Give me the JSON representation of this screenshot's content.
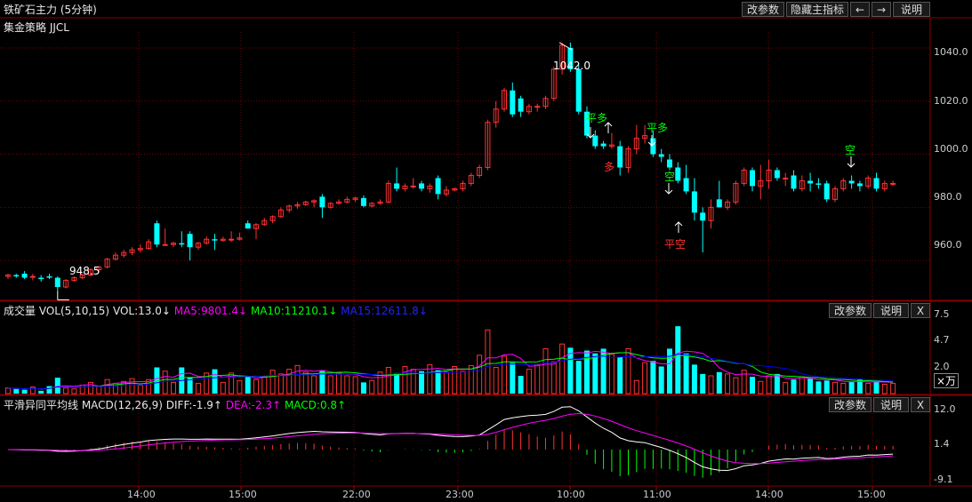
{
  "header": {
    "title": "铁矿石主力 (5分钟)",
    "strategy": "集金策略 JJCL",
    "buttons": [
      "改参数",
      "隐藏主指标",
      "←",
      "→",
      "说明"
    ]
  },
  "colors": {
    "up": "#ff3232",
    "down": "#00ffff",
    "grid": "#7a0000",
    "ma5": "#ff00ff",
    "ma10": "#00ff00",
    "ma15": "#0000ff",
    "signal_green": "#00ff00",
    "signal_red": "#ff3232"
  },
  "price_panel": {
    "y_ticks": [
      "1040.0",
      "1020.0",
      "1000.0",
      "980.0",
      "960.0"
    ],
    "high_label": "1042.0",
    "low_label": "948.5",
    "signals": [
      {
        "text": "平多",
        "color": "green"
      },
      {
        "text": "多",
        "color": "red"
      },
      {
        "text": "平多",
        "color": "green"
      },
      {
        "text": "空",
        "color": "green"
      },
      {
        "text": "平空",
        "color": "red"
      },
      {
        "text": "空",
        "color": "green"
      }
    ]
  },
  "volume_panel": {
    "title": "成交量 VOL(5,10,15)",
    "vol": "VOL:13.0↓",
    "ma5": "MA5:9801.4↓",
    "ma10": "MA10:11210.1↓",
    "ma15": "MA15:12611.8↓",
    "y_ticks": [
      "7.5",
      "4.7",
      "2.0"
    ],
    "unit": "×万",
    "buttons": [
      "改参数",
      "说明",
      "X"
    ]
  },
  "macd_panel": {
    "title": "平滑异同平均线 MACD(12,26,9)",
    "diff": "DIFF:-1.9↑",
    "dea": "DEA:-2.3↑",
    "macd": "MACD:0.8↑",
    "y_ticks": [
      "12.0",
      "1.4",
      "-9.1"
    ],
    "buttons": [
      "改参数",
      "说明",
      "X"
    ]
  },
  "x_ticks": [
    "14:00",
    "15:00",
    "22:00",
    "23:00",
    "10:00",
    "11:00",
    "14:00",
    "15:00"
  ],
  "chart_data": {
    "type": "candlestick",
    "price_range": [
      945,
      1046
    ],
    "candles": [
      [
        954,
        955,
        953,
        954.5
      ],
      [
        954.5,
        955,
        953.5,
        954
      ],
      [
        955,
        956,
        953,
        953.5
      ],
      [
        954,
        955,
        952.5,
        954
      ],
      [
        953.5,
        954.5,
        952,
        953
      ],
      [
        954,
        955,
        953,
        953.5
      ],
      [
        953.5,
        954,
        948.5,
        950
      ],
      [
        950,
        953,
        949.5,
        952.5
      ],
      [
        952.5,
        954,
        952,
        953.5
      ],
      [
        953.5,
        955,
        953,
        954.5
      ],
      [
        954.5,
        957,
        954,
        956.5
      ],
      [
        956.5,
        958,
        955.5,
        957.5
      ],
      [
        957.5,
        961,
        957,
        960.5
      ],
      [
        960.5,
        963,
        960,
        962
      ],
      [
        962,
        964,
        961,
        963
      ],
      [
        963,
        965,
        962,
        964
      ],
      [
        964,
        966,
        963,
        964.5
      ],
      [
        964.5,
        968,
        964,
        967
      ],
      [
        974,
        975,
        965,
        966
      ],
      [
        966,
        972,
        965.5,
        966
      ],
      [
        966,
        967,
        965,
        966.5
      ],
      [
        966.5,
        971,
        965,
        966
      ],
      [
        970,
        971,
        960,
        965
      ],
      [
        965,
        967,
        964,
        966.5
      ],
      [
        966.5,
        969,
        966,
        968
      ],
      [
        968,
        970,
        964,
        967.5
      ],
      [
        967.5,
        969,
        967,
        968
      ],
      [
        968,
        971,
        967,
        968
      ],
      [
        968,
        970.5,
        967.5,
        968.5
      ],
      [
        974,
        975,
        972,
        972
      ],
      [
        972,
        974,
        968,
        973.5
      ],
      [
        973.5,
        976,
        973,
        975
      ],
      [
        975,
        977,
        974,
        976.5
      ],
      [
        976.5,
        980,
        976,
        979
      ],
      [
        979,
        981,
        978,
        980.5
      ],
      [
        980.5,
        982,
        979.5,
        981
      ],
      [
        981,
        982.5,
        980.5,
        982
      ],
      [
        982,
        983,
        980,
        982.5
      ],
      [
        984,
        985,
        976,
        980
      ],
      [
        980,
        982,
        979.5,
        981.5
      ],
      [
        981.5,
        983,
        981,
        982
      ],
      [
        982,
        984,
        981.5,
        983
      ],
      [
        983,
        984,
        982,
        983.5
      ],
      [
        983.5,
        984.5,
        980,
        980.5
      ],
      [
        980.5,
        982,
        980,
        981.5
      ],
      [
        981.5,
        983,
        981,
        982
      ],
      [
        982,
        990,
        981.5,
        989
      ],
      [
        989,
        995,
        986,
        987
      ],
      [
        987,
        989,
        986,
        988
      ],
      [
        988,
        991,
        987,
        988
      ],
      [
        989,
        990,
        986,
        987
      ],
      [
        987,
        989,
        985.5,
        988
      ],
      [
        991,
        992,
        983,
        985
      ],
      [
        985,
        988,
        984,
        986.5
      ],
      [
        986.5,
        987.5,
        986,
        987
      ],
      [
        987,
        990,
        986,
        989
      ],
      [
        989,
        993,
        988,
        992
      ],
      [
        992,
        996,
        991,
        995
      ],
      [
        995,
        1013,
        994,
        1012
      ],
      [
        1012,
        1020,
        1010,
        1017
      ],
      [
        1017,
        1025,
        1016,
        1024
      ],
      [
        1024,
        1027,
        1014,
        1015
      ],
      [
        1021,
        1022,
        1014,
        1016
      ],
      [
        1016,
        1019,
        1015,
        1018
      ],
      [
        1018,
        1019,
        1016,
        1018
      ],
      [
        1018,
        1022,
        1017,
        1021
      ],
      [
        1021,
        1033,
        1020,
        1032
      ],
      [
        1032,
        1042,
        1030,
        1041
      ],
      [
        1040,
        1042,
        1031,
        1032
      ],
      [
        1032,
        1034,
        1015,
        1016
      ],
      [
        1016,
        1018,
        1006,
        1007
      ],
      [
        1007,
        1009,
        1002,
        1003
      ],
      [
        1004,
        1005,
        1002,
        1003
      ],
      [
        1003,
        1008,
        1002,
        1003.5
      ],
      [
        1003,
        1005,
        992,
        995
      ],
      [
        995,
        1003,
        993,
        1002
      ],
      [
        1002,
        1011,
        1000,
        1006
      ],
      [
        1006,
        1011,
        1004,
        1007
      ],
      [
        1006,
        1009,
        999,
        1000
      ],
      [
        1000,
        1002,
        997,
        999
      ],
      [
        998,
        1000,
        994,
        995
      ],
      [
        995,
        997,
        989,
        990
      ],
      [
        991,
        996,
        985,
        986
      ],
      [
        986,
        991,
        975,
        978
      ],
      [
        978,
        980,
        963,
        975
      ],
      [
        975,
        983,
        972,
        980
      ],
      [
        983,
        990,
        980,
        980
      ],
      [
        980,
        983,
        979,
        982
      ],
      [
        982,
        990,
        981,
        989
      ],
      [
        989,
        995,
        988,
        994
      ],
      [
        994,
        995,
        986,
        988
      ],
      [
        988,
        996,
        983,
        990
      ],
      [
        990,
        998,
        987,
        994
      ],
      [
        994,
        995,
        990,
        991
      ],
      [
        991,
        993,
        988,
        991
      ],
      [
        992,
        994,
        986,
        987
      ],
      [
        987,
        992,
        986,
        990
      ],
      [
        990,
        993,
        986,
        989
      ],
      [
        989,
        991,
        987,
        988.5
      ],
      [
        989,
        990,
        982,
        983
      ],
      [
        983,
        988,
        982,
        987
      ],
      [
        987,
        991,
        986,
        990
      ],
      [
        990,
        992,
        987,
        989
      ],
      [
        989,
        990,
        986,
        988
      ],
      [
        988,
        992,
        987,
        991
      ],
      [
        991,
        993,
        986,
        987
      ],
      [
        987,
        990,
        986,
        989
      ],
      [
        989,
        990,
        988,
        989
      ]
    ],
    "volume": [
      0.6,
      0.5,
      0.4,
      0.7,
      0.3,
      0.8,
      1.7,
      0.6,
      0.5,
      0.9,
      1.2,
      0.8,
      1.5,
      1.1,
      1.3,
      1.6,
      0.9,
      1.5,
      2.8,
      2.4,
      1.2,
      2.8,
      1.7,
      1.1,
      2.2,
      2.6,
      1.2,
      2.2,
      1.4,
      1.9,
      1.5,
      1.8,
      2.5,
      2.1,
      2.6,
      3.0,
      2.3,
      1.9,
      2.5,
      1.9,
      2.2,
      1.9,
      1.8,
      1.2,
      1.4,
      2.3,
      2.8,
      2.2,
      2.9,
      2.6,
      2.4,
      3.1,
      2.5,
      2.3,
      2.9,
      2.4,
      3.0,
      4.1,
      6.8,
      2.8,
      4.0,
      3.3,
      1.9,
      2.6,
      3.1,
      4.8,
      3.4,
      5.3,
      4.9,
      3.5,
      4.6,
      4.3,
      4.8,
      4.2,
      3.9,
      4.8,
      1.4,
      3.3,
      3.5,
      2.9,
      4.8,
      7.2,
      4.3,
      3.1,
      2.1,
      1.9,
      2.3,
      2.1,
      1.7,
      2.5,
      1.8,
      1.3,
      1.9,
      2.1,
      1.2,
      1.5,
      1.8,
      1.6,
      1.3,
      1.4,
      1.2,
      1.1,
      1.3,
      1.5,
      1.1,
      1.3,
      1.0,
      1.1
    ],
    "macd_range": [
      -11,
      14
    ]
  }
}
